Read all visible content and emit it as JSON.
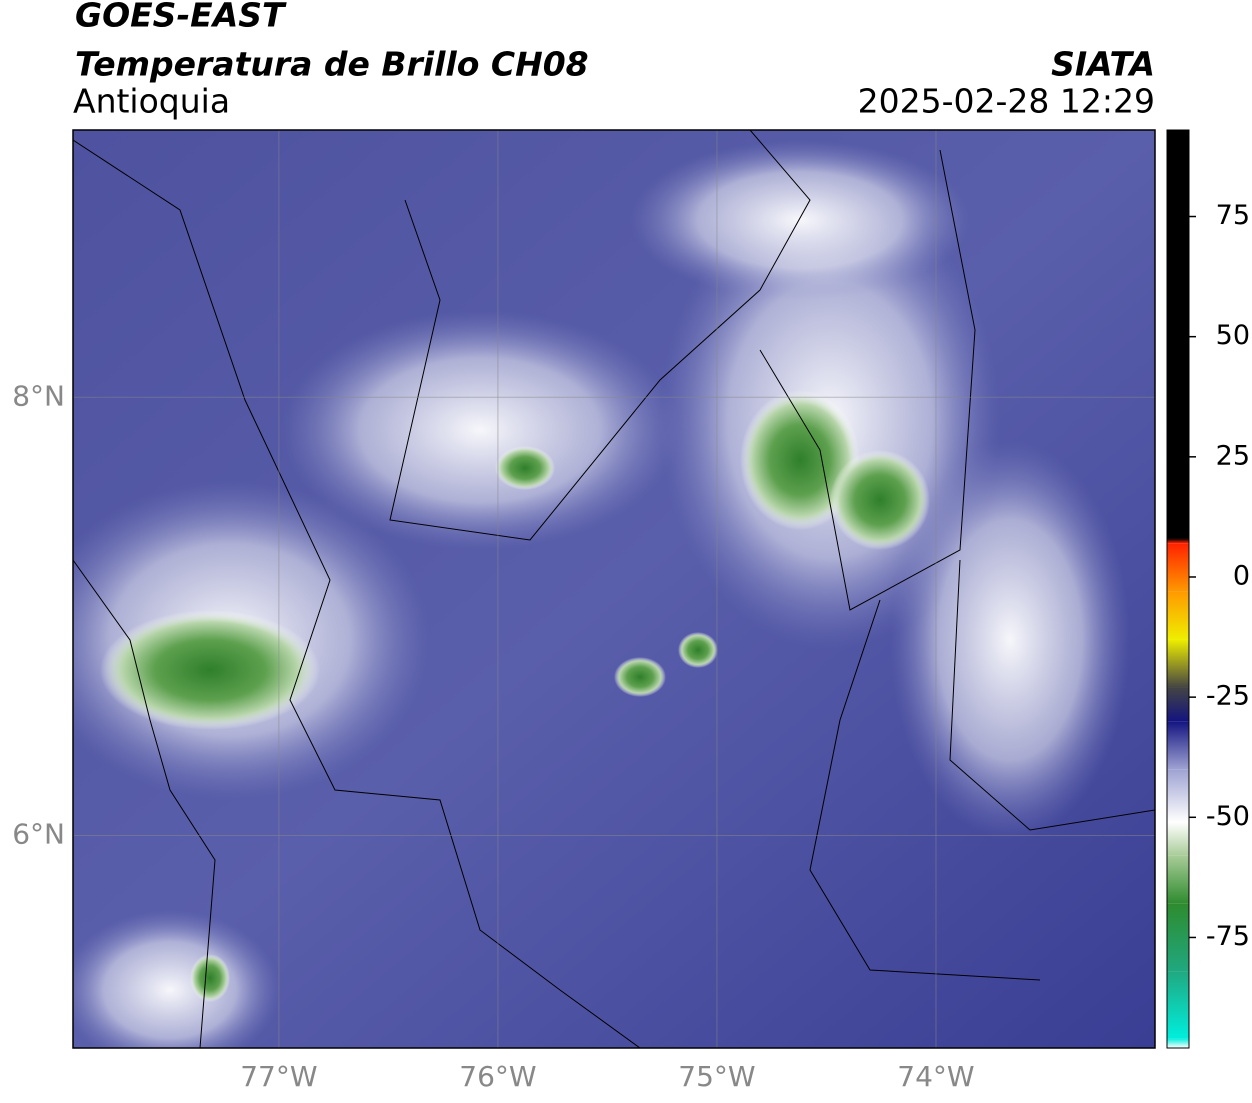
{
  "header": {
    "title": "GOES-EAST",
    "subtitle": "Temperatura de Brillo CH08",
    "region": "Antioquia",
    "source": "SIATA",
    "datetime": "2025-02-28 12:29"
  },
  "map": {
    "xlim": [
      -77.94,
      -73.0
    ],
    "ylim": [
      5.03,
      9.22
    ],
    "xticks": [
      {
        "value": -77,
        "label": "77°W"
      },
      {
        "value": -76,
        "label": "76°W"
      },
      {
        "value": -75,
        "label": "75°W"
      },
      {
        "value": -74,
        "label": "74°W"
      }
    ],
    "yticks": [
      {
        "value": 8,
        "label": "8°N"
      },
      {
        "value": 6,
        "label": "6°N"
      }
    ],
    "grid": true
  },
  "colorbar": {
    "lim": [
      -98,
      93
    ],
    "ticks": [
      75,
      50,
      25,
      0,
      -25,
      -50,
      -75
    ],
    "stops": [
      {
        "value": -98,
        "color": "#ffffff"
      },
      {
        "value": -96,
        "color": "#00eedd"
      },
      {
        "value": -82,
        "color": "#20a880"
      },
      {
        "value": -68,
        "color": "#2e8b2e"
      },
      {
        "value": -58,
        "color": "#a8cc98"
      },
      {
        "value": -51,
        "color": "#ffffff"
      },
      {
        "value": -40,
        "color": "#9ea2d2"
      },
      {
        "value": -30,
        "color": "#141480"
      },
      {
        "value": -23,
        "color": "#444444"
      },
      {
        "value": -13,
        "color": "#eeee00"
      },
      {
        "value": -3,
        "color": "#ff9900"
      },
      {
        "value": 7,
        "color": "#ff2200"
      },
      {
        "value": 8,
        "color": "#000000"
      },
      {
        "value": 93,
        "color": "#000000"
      }
    ]
  }
}
